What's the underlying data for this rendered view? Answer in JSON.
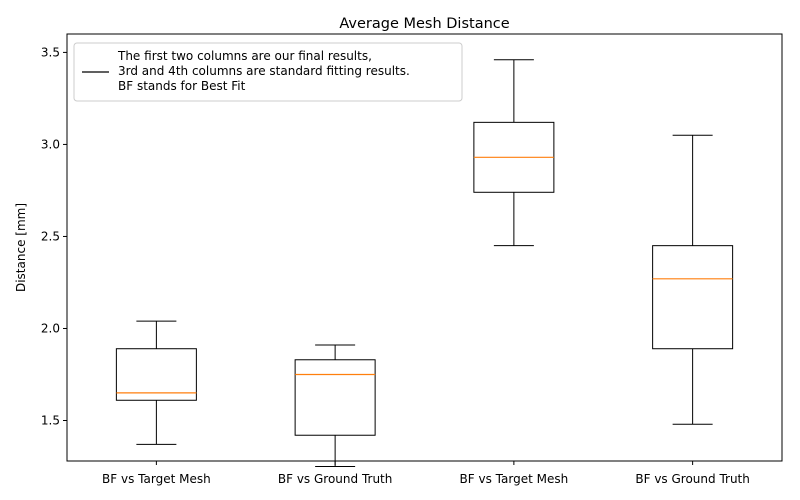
{
  "chart_data": {
    "type": "box",
    "title": "Average Mesh Distance",
    "xlabel": "",
    "ylabel": "Distance [mm]",
    "ylim": [
      1.28,
      3.6
    ],
    "yticks": [
      "1.5",
      "2.0",
      "2.5",
      "3.0",
      "3.5"
    ],
    "categories": [
      "BF vs Target Mesh",
      "BF vs Ground Truth",
      "BF vs Target Mesh",
      "BF vs Ground Truth"
    ],
    "boxes": [
      {
        "whisker_low": 1.37,
        "q1": 1.61,
        "median": 1.65,
        "q3": 1.89,
        "whisker_high": 2.04
      },
      {
        "whisker_low": 1.25,
        "q1": 1.42,
        "median": 1.75,
        "q3": 1.83,
        "whisker_high": 1.91
      },
      {
        "whisker_low": 2.45,
        "q1": 2.74,
        "median": 2.93,
        "q3": 3.12,
        "whisker_high": 3.46
      },
      {
        "whisker_low": 1.48,
        "q1": 1.89,
        "median": 2.27,
        "q3": 2.45,
        "whisker_high": 3.05
      }
    ],
    "grid": false,
    "legend": {
      "placement": "upper-left",
      "lines": [
        "The first two columns are our final results,",
        "3rd and 4th columns are standard fitting results.",
        "BF stands for Best Fit"
      ]
    },
    "colors": {
      "box": "#000000",
      "median": "#ff7f0e",
      "background": "#ffffff"
    }
  }
}
